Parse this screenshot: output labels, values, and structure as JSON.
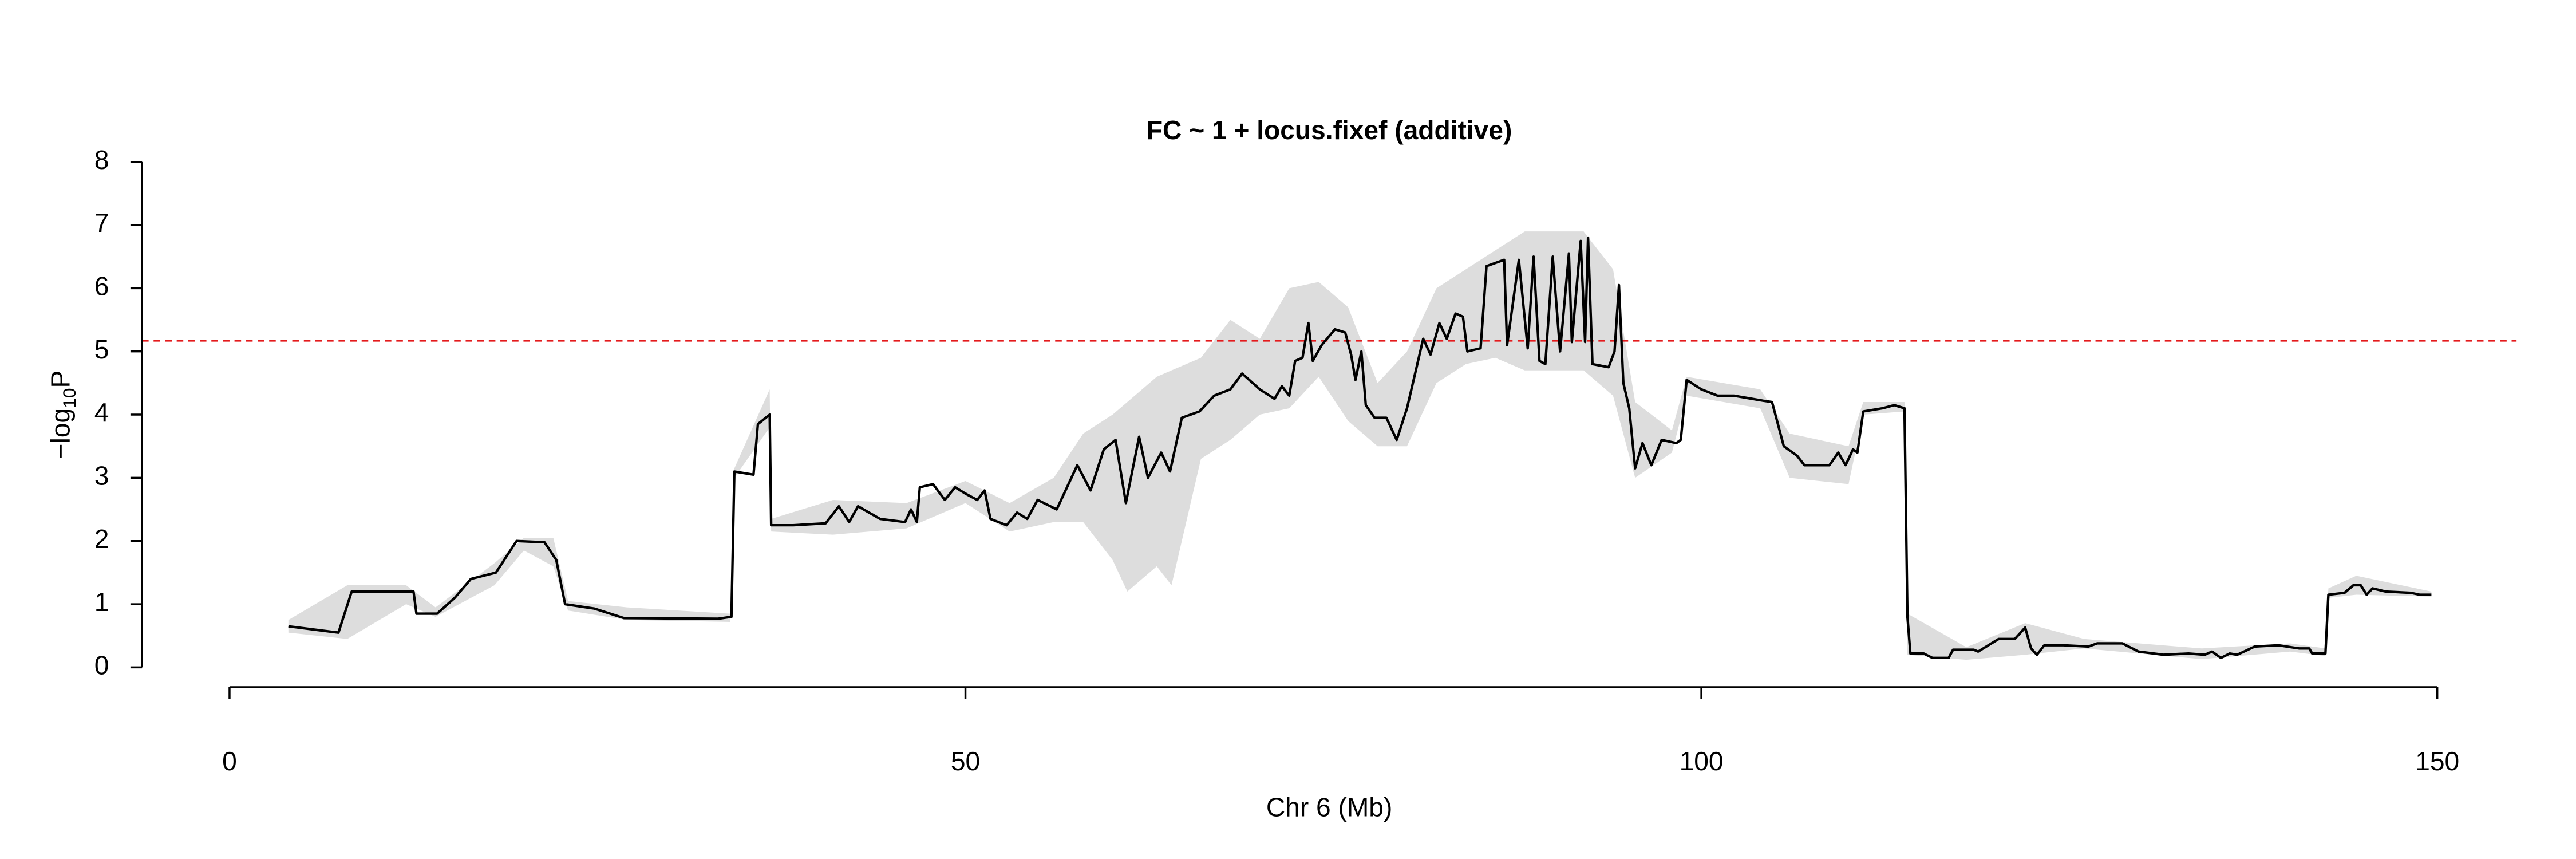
{
  "chart_data": {
    "type": "line",
    "title": "FC ~ 1 + locus.fixef (additive)",
    "xlabel": "Chr 6 (Mb)",
    "ylabel_parts": [
      "−log",
      "10",
      "P"
    ],
    "xlim": [
      0,
      150
    ],
    "xticks": [
      0,
      50,
      100,
      150
    ],
    "ylim": [
      0,
      8
    ],
    "yticks": [
      0,
      1,
      2,
      3,
      4,
      5,
      6,
      7,
      8
    ],
    "threshold": 5.17,
    "threshold_color": "#e41a1c",
    "color": "#000000",
    "x": [
      4.0,
      7.4,
      8.3,
      12.5,
      12.7,
      14.1,
      15.3,
      16.4,
      18.1,
      19.5,
      21.4,
      22.2,
      22.8,
      24.8,
      26.8,
      33.2,
      34.1,
      34.3,
      35.6,
      35.9,
      36.7,
      36.8,
      38.3,
      40.5,
      41.4,
      42.1,
      42.7,
      44.2,
      45.9,
      46.3,
      46.7,
      46.9,
      47.8,
      48.6,
      49.3,
      50.0,
      50.8,
      51.3,
      51.7,
      52.8,
      53.5,
      54.2,
      54.9,
      56.2,
      57.6,
      58.5,
      59.4,
      60.2,
      60.9,
      61.8,
      62.4,
      63.3,
      63.9,
      64.7,
      65.9,
      66.9,
      68.0,
      68.8,
      70.0,
      71.0,
      71.5,
      72.0,
      72.4,
      72.9,
      73.3,
      73.6,
      74.2,
      75.1,
      75.8,
      76.2,
      76.5,
      76.9,
      77.2,
      77.8,
      78.6,
      79.3,
      80.0,
      80.7,
      81.1,
      81.6,
      82.2,
      82.7,
      83.3,
      83.8,
      84.1,
      85.0,
      85.4,
      86.6,
      86.8,
      87.6,
      88.2,
      88.6,
      89.0,
      89.4,
      89.9,
      90.4,
      91.0,
      91.2,
      91.8,
      92.1,
      92.3,
      92.6,
      93.7,
      94.1,
      94.4,
      94.7,
      95.1,
      95.5,
      96.0,
      96.6,
      97.3,
      98.3,
      98.6,
      99.0,
      100.0,
      101.1,
      102.2,
      104.2,
      104.8,
      105.6,
      106.5,
      107.0,
      108.7,
      109.3,
      109.8,
      110.3,
      110.6,
      111.0,
      112.3,
      113.1,
      113.8,
      114.0,
      114.2,
      115.1,
      115.7,
      116.8,
      117.1,
      118.5,
      118.8,
      120.2,
      121.3,
      122.0,
      122.4,
      122.8,
      123.3,
      124.6,
      126.3,
      126.9,
      128.6,
      129.7,
      131.4,
      133.1,
      134.2,
      134.7,
      135.3,
      135.9,
      136.4,
      137.6,
      139.2,
      140.6,
      141.3,
      141.5,
      142.4,
      142.6,
      143.7,
      144.3,
      144.8,
      145.2,
      145.6,
      146.5,
      148.2,
      148.8,
      149.6
    ],
    "values": [
      0.65,
      0.55,
      1.2,
      1.2,
      0.85,
      0.85,
      1.1,
      1.4,
      1.5,
      2.0,
      1.98,
      1.7,
      1.0,
      0.93,
      0.78,
      0.77,
      0.8,
      3.1,
      3.05,
      3.85,
      4.0,
      2.25,
      2.25,
      2.28,
      2.55,
      2.3,
      2.55,
      2.35,
      2.3,
      2.5,
      2.3,
      2.85,
      2.9,
      2.65,
      2.85,
      2.75,
      2.65,
      2.8,
      2.35,
      2.25,
      2.45,
      2.35,
      2.65,
      2.5,
      3.2,
      2.8,
      3.45,
      3.6,
      2.6,
      3.65,
      3.0,
      3.4,
      3.1,
      3.95,
      4.05,
      4.3,
      4.4,
      4.65,
      4.4,
      4.25,
      4.45,
      4.3,
      4.85,
      4.9,
      5.45,
      4.85,
      5.1,
      5.35,
      5.3,
      4.95,
      4.55,
      5.0,
      4.15,
      3.95,
      3.95,
      3.6,
      4.1,
      4.8,
      5.2,
      4.95,
      5.45,
      5.2,
      5.6,
      5.55,
      5.0,
      5.05,
      6.35,
      6.45,
      5.1,
      6.45,
      5.05,
      6.5,
      4.85,
      4.8,
      6.5,
      5.0,
      6.55,
      5.15,
      6.75,
      5.15,
      6.8,
      4.8,
      4.75,
      5.0,
      6.05,
      4.5,
      4.1,
      3.15,
      3.55,
      3.2,
      3.6,
      3.55,
      3.6,
      4.55,
      4.4,
      4.3,
      4.3,
      4.22,
      4.2,
      3.5,
      3.35,
      3.2,
      3.2,
      3.4,
      3.2,
      3.45,
      3.4,
      4.05,
      4.1,
      4.15,
      4.1,
      0.8,
      0.22,
      0.22,
      0.15,
      0.15,
      0.28,
      0.28,
      0.25,
      0.45,
      0.45,
      0.63,
      0.3,
      0.2,
      0.35,
      0.35,
      0.33,
      0.38,
      0.38,
      0.25,
      0.2,
      0.22,
      0.2,
      0.25,
      0.15,
      0.22,
      0.2,
      0.33,
      0.35,
      0.3,
      0.3,
      0.22,
      0.22,
      1.15,
      1.18,
      1.3,
      1.3,
      1.15,
      1.25,
      1.2,
      1.18,
      1.15,
      1.15
    ],
    "band": {
      "color": "#dddddd",
      "x": [
        4,
        8,
        12,
        14,
        18,
        20,
        22,
        23,
        27,
        34,
        34.3,
        36.7,
        36.8,
        41,
        46,
        50,
        53,
        56,
        58,
        60,
        61,
        63,
        64,
        66,
        68,
        70,
        72,
        74,
        76,
        78,
        80,
        82,
        84,
        86,
        88,
        92,
        94,
        95.5,
        98,
        99,
        104,
        106,
        110,
        111,
        113.8,
        114,
        118,
        122,
        126,
        134,
        140,
        142.4,
        142.6,
        144.5,
        149.6
      ],
      "lower": [
        0.55,
        0.45,
        1.0,
        0.8,
        1.3,
        1.85,
        1.6,
        0.9,
        0.75,
        0.72,
        3.0,
        3.8,
        2.15,
        2.1,
        2.2,
        2.6,
        2.15,
        2.3,
        2.3,
        1.7,
        1.2,
        1.6,
        1.3,
        3.3,
        3.6,
        4.0,
        4.1,
        4.6,
        3.9,
        3.5,
        3.5,
        4.5,
        4.8,
        4.9,
        4.7,
        4.7,
        4.3,
        3.0,
        3.4,
        4.3,
        4.1,
        3.0,
        2.9,
        4.0,
        4.05,
        0.2,
        0.12,
        0.2,
        0.3,
        0.13,
        0.25,
        0.18,
        1.1,
        1.15,
        1.12
      ],
      "upper": [
        0.75,
        1.3,
        1.3,
        0.95,
        1.65,
        2.05,
        2.05,
        1.05,
        0.95,
        0.85,
        3.15,
        4.4,
        2.35,
        2.65,
        2.6,
        2.95,
        2.6,
        3.0,
        3.7,
        4.0,
        4.2,
        4.6,
        4.7,
        4.9,
        5.5,
        5.2,
        6.0,
        6.1,
        5.7,
        4.5,
        5.0,
        6.0,
        6.3,
        6.6,
        6.9,
        6.9,
        6.3,
        4.2,
        3.75,
        4.6,
        4.4,
        3.7,
        3.5,
        4.2,
        4.2,
        0.85,
        0.32,
        0.7,
        0.45,
        0.3,
        0.38,
        0.3,
        1.25,
        1.45,
        1.2
      ]
    }
  }
}
